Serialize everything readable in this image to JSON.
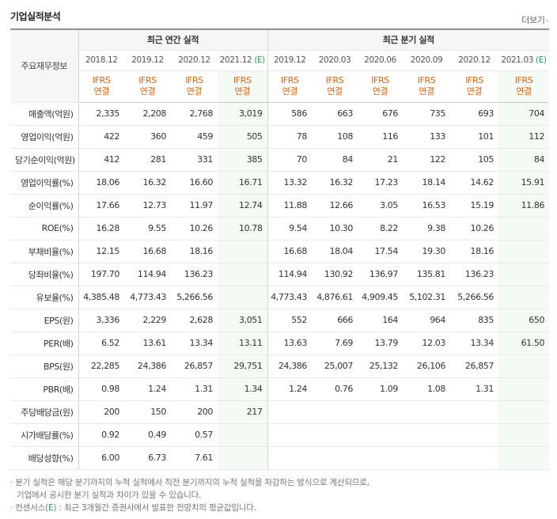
{
  "header": {
    "title": "기업실적분석",
    "more_label": "더보기"
  },
  "table": {
    "label_head": "주요재무정보",
    "annual_group": "최근 연간 실적",
    "quarter_group": "최근 분기 실적",
    "annual_periods": [
      "2018.12",
      "2019.12",
      "2020.12",
      "2021.12"
    ],
    "quarter_periods": [
      "2019.12",
      "2020.03",
      "2020.06",
      "2020.09",
      "2020.12",
      "2021.03"
    ],
    "estimate_mark": "(E)",
    "ifrs_top": "IFRS",
    "ifrs_bottom": "연결",
    "rows": [
      {
        "label": "매출액(억원)",
        "annual": [
          "2,335",
          "2,208",
          "2,768",
          "3,019"
        ],
        "quarter": [
          "586",
          "663",
          "676",
          "735",
          "693",
          "704"
        ]
      },
      {
        "label": "영업이익(억원)",
        "annual": [
          "422",
          "360",
          "459",
          "505"
        ],
        "quarter": [
          "78",
          "108",
          "116",
          "133",
          "101",
          "112"
        ]
      },
      {
        "label": "당기순이익(억원)",
        "annual": [
          "412",
          "281",
          "331",
          "385"
        ],
        "quarter": [
          "70",
          "84",
          "21",
          "122",
          "105",
          "84"
        ]
      },
      {
        "label": "영업이익률(%)",
        "annual": [
          "18.06",
          "16.32",
          "16.60",
          "16.71"
        ],
        "quarter": [
          "13.32",
          "16.32",
          "17.23",
          "18.14",
          "14.62",
          "15.91"
        ]
      },
      {
        "label": "순이익률(%)",
        "annual": [
          "17.66",
          "12.73",
          "11.97",
          "12.74"
        ],
        "quarter": [
          "11.88",
          "12.66",
          "3.05",
          "16.53",
          "15.19",
          "11.86"
        ]
      },
      {
        "label": "ROE(%)",
        "annual": [
          "16.28",
          "9.55",
          "10.26",
          "10.78"
        ],
        "quarter": [
          "9.54",
          "10.30",
          "8.22",
          "9.38",
          "10.26",
          ""
        ]
      },
      {
        "label": "부채비율(%)",
        "annual": [
          "12.15",
          "16.68",
          "18.16",
          ""
        ],
        "quarter": [
          "16.68",
          "18.04",
          "17.54",
          "19.30",
          "18.16",
          ""
        ]
      },
      {
        "label": "당좌비율(%)",
        "annual": [
          "197.70",
          "114.94",
          "136.23",
          ""
        ],
        "quarter": [
          "114.94",
          "130.92",
          "136.97",
          "135.81",
          "136.23",
          ""
        ]
      },
      {
        "label": "유보율(%)",
        "annual": [
          "4,385.48",
          "4,773.43",
          "5,266.56",
          ""
        ],
        "quarter": [
          "4,773.43",
          "4,876.61",
          "4,909.45",
          "5,102.31",
          "5,266.56",
          ""
        ]
      },
      {
        "label": "EPS(원)",
        "annual": [
          "3,336",
          "2,229",
          "2,628",
          "3,051"
        ],
        "quarter": [
          "552",
          "666",
          "164",
          "964",
          "835",
          "650"
        ]
      },
      {
        "label": "PER(배)",
        "annual": [
          "6.52",
          "13.61",
          "13.34",
          "13.11"
        ],
        "quarter": [
          "13.63",
          "7.69",
          "13.79",
          "12.03",
          "13.34",
          "61.50"
        ]
      },
      {
        "label": "BPS(원)",
        "annual": [
          "22,285",
          "24,386",
          "26,857",
          "29,751"
        ],
        "quarter": [
          "24,386",
          "25,007",
          "25,132",
          "26,106",
          "26,857",
          ""
        ]
      },
      {
        "label": "PBR(배)",
        "annual": [
          "0.98",
          "1.24",
          "1.31",
          "1.34"
        ],
        "quarter": [
          "1.24",
          "0.76",
          "1.09",
          "1.08",
          "1.31",
          ""
        ]
      },
      {
        "label": "주당배당금(원)",
        "annual": [
          "200",
          "150",
          "200",
          "217"
        ],
        "quarter": [
          "",
          "",
          "",
          "",
          "",
          ""
        ]
      },
      {
        "label": "시가배당률(%)",
        "annual": [
          "0.92",
          "0.49",
          "0.57",
          ""
        ],
        "quarter": [
          "",
          "",
          "",
          "",
          "",
          ""
        ]
      },
      {
        "label": "배당성향(%)",
        "annual": [
          "6.00",
          "6.73",
          "7.61",
          ""
        ],
        "quarter": [
          "",
          "",
          "",
          "",
          "",
          ""
        ]
      }
    ]
  },
  "notes": {
    "line1": "분기 실적은 해당 분기까지의 누적 실적에서 직전 분기까지의 누적 실적을 차감하는 방식으로 계산되므로,",
    "line2": "기업에서 공시한 분기 실적과 차이가 있을 수 있습니다.",
    "line3_pre": "컨센서스(",
    "line3_mark": "E",
    "line3_post": ") : 최근 3개월간 증권사에서 발표한 전망치의 평균값입니다."
  }
}
